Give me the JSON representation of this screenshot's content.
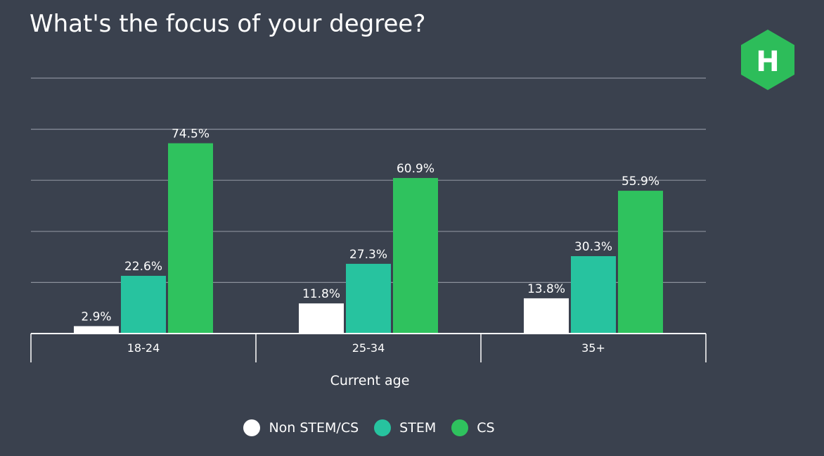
{
  "colors": {
    "background": "#3a414e",
    "gridline": "#8a909b",
    "axis": "#ffffff",
    "non_stem": "#ffffff",
    "stem": "#27c39f",
    "cs": "#2fc25e",
    "logo": "#2dbd5a"
  },
  "logo": {
    "letter": "H"
  },
  "chart_data": {
    "type": "bar",
    "title": "What's the focus of your degree?",
    "xlabel": "Current age",
    "ylabel": "",
    "categories": [
      "18-24",
      "25-34",
      "35+"
    ],
    "ylim": [
      0,
      100
    ],
    "grid": true,
    "legend_position": "bottom",
    "series": [
      {
        "name": "Non STEM/CS",
        "color": "#ffffff",
        "values": [
          2.9,
          11.8,
          13.8
        ],
        "labels": [
          "2.9%",
          "11.8%",
          "13.8%"
        ]
      },
      {
        "name": "STEM",
        "color": "#27c39f",
        "values": [
          22.6,
          27.3,
          30.3
        ],
        "labels": [
          "22.6%",
          "27.3%",
          "30.3%"
        ]
      },
      {
        "name": "CS",
        "color": "#2fc25e",
        "values": [
          74.5,
          60.9,
          55.9
        ],
        "labels": [
          "74.5%",
          "60.9%",
          "55.9%"
        ]
      }
    ]
  }
}
